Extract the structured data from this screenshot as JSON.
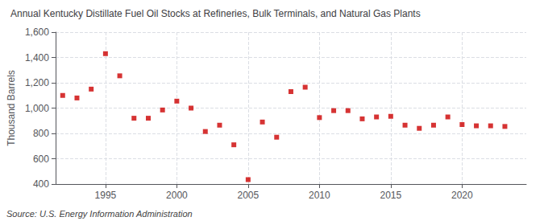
{
  "chart_data": {
    "type": "scatter",
    "title": "Annual Kentucky Distillate Fuel Oil Stocks at Refineries, Bulk Terminals, and Natural Gas Plants",
    "ylabel": "Thousand Barrels",
    "source": "Source: U.S. Energy Information Administration",
    "x": [
      1992,
      1993,
      1994,
      1995,
      1996,
      1997,
      1998,
      1999,
      2000,
      2001,
      2002,
      2003,
      2004,
      2005,
      2006,
      2007,
      2008,
      2009,
      2010,
      2011,
      2012,
      2013,
      2014,
      2015,
      2016,
      2017,
      2018,
      2019,
      2020,
      2021,
      2022,
      2023
    ],
    "values": [
      1100,
      1080,
      1150,
      1430,
      1255,
      920,
      920,
      985,
      1055,
      1000,
      815,
      865,
      710,
      435,
      890,
      770,
      1130,
      1165,
      925,
      980,
      980,
      915,
      930,
      935,
      865,
      840,
      865,
      930,
      870,
      860,
      860,
      855
    ],
    "color": "#cc0000",
    "marker": "square",
    "xlim": [
      1991.5,
      2024.5
    ],
    "xticks": [
      1995,
      2000,
      2005,
      2010,
      2015,
      2020
    ],
    "ylim": [
      400,
      1600
    ],
    "yticks": [
      400,
      600,
      800,
      {
        "value": 1000,
        "label": "1,000"
      },
      {
        "value": 1200,
        "label": "1,200"
      },
      {
        "value": 1400,
        "label": "1,400"
      },
      {
        "value": 1600,
        "label": "1,600"
      }
    ],
    "grid": true
  }
}
